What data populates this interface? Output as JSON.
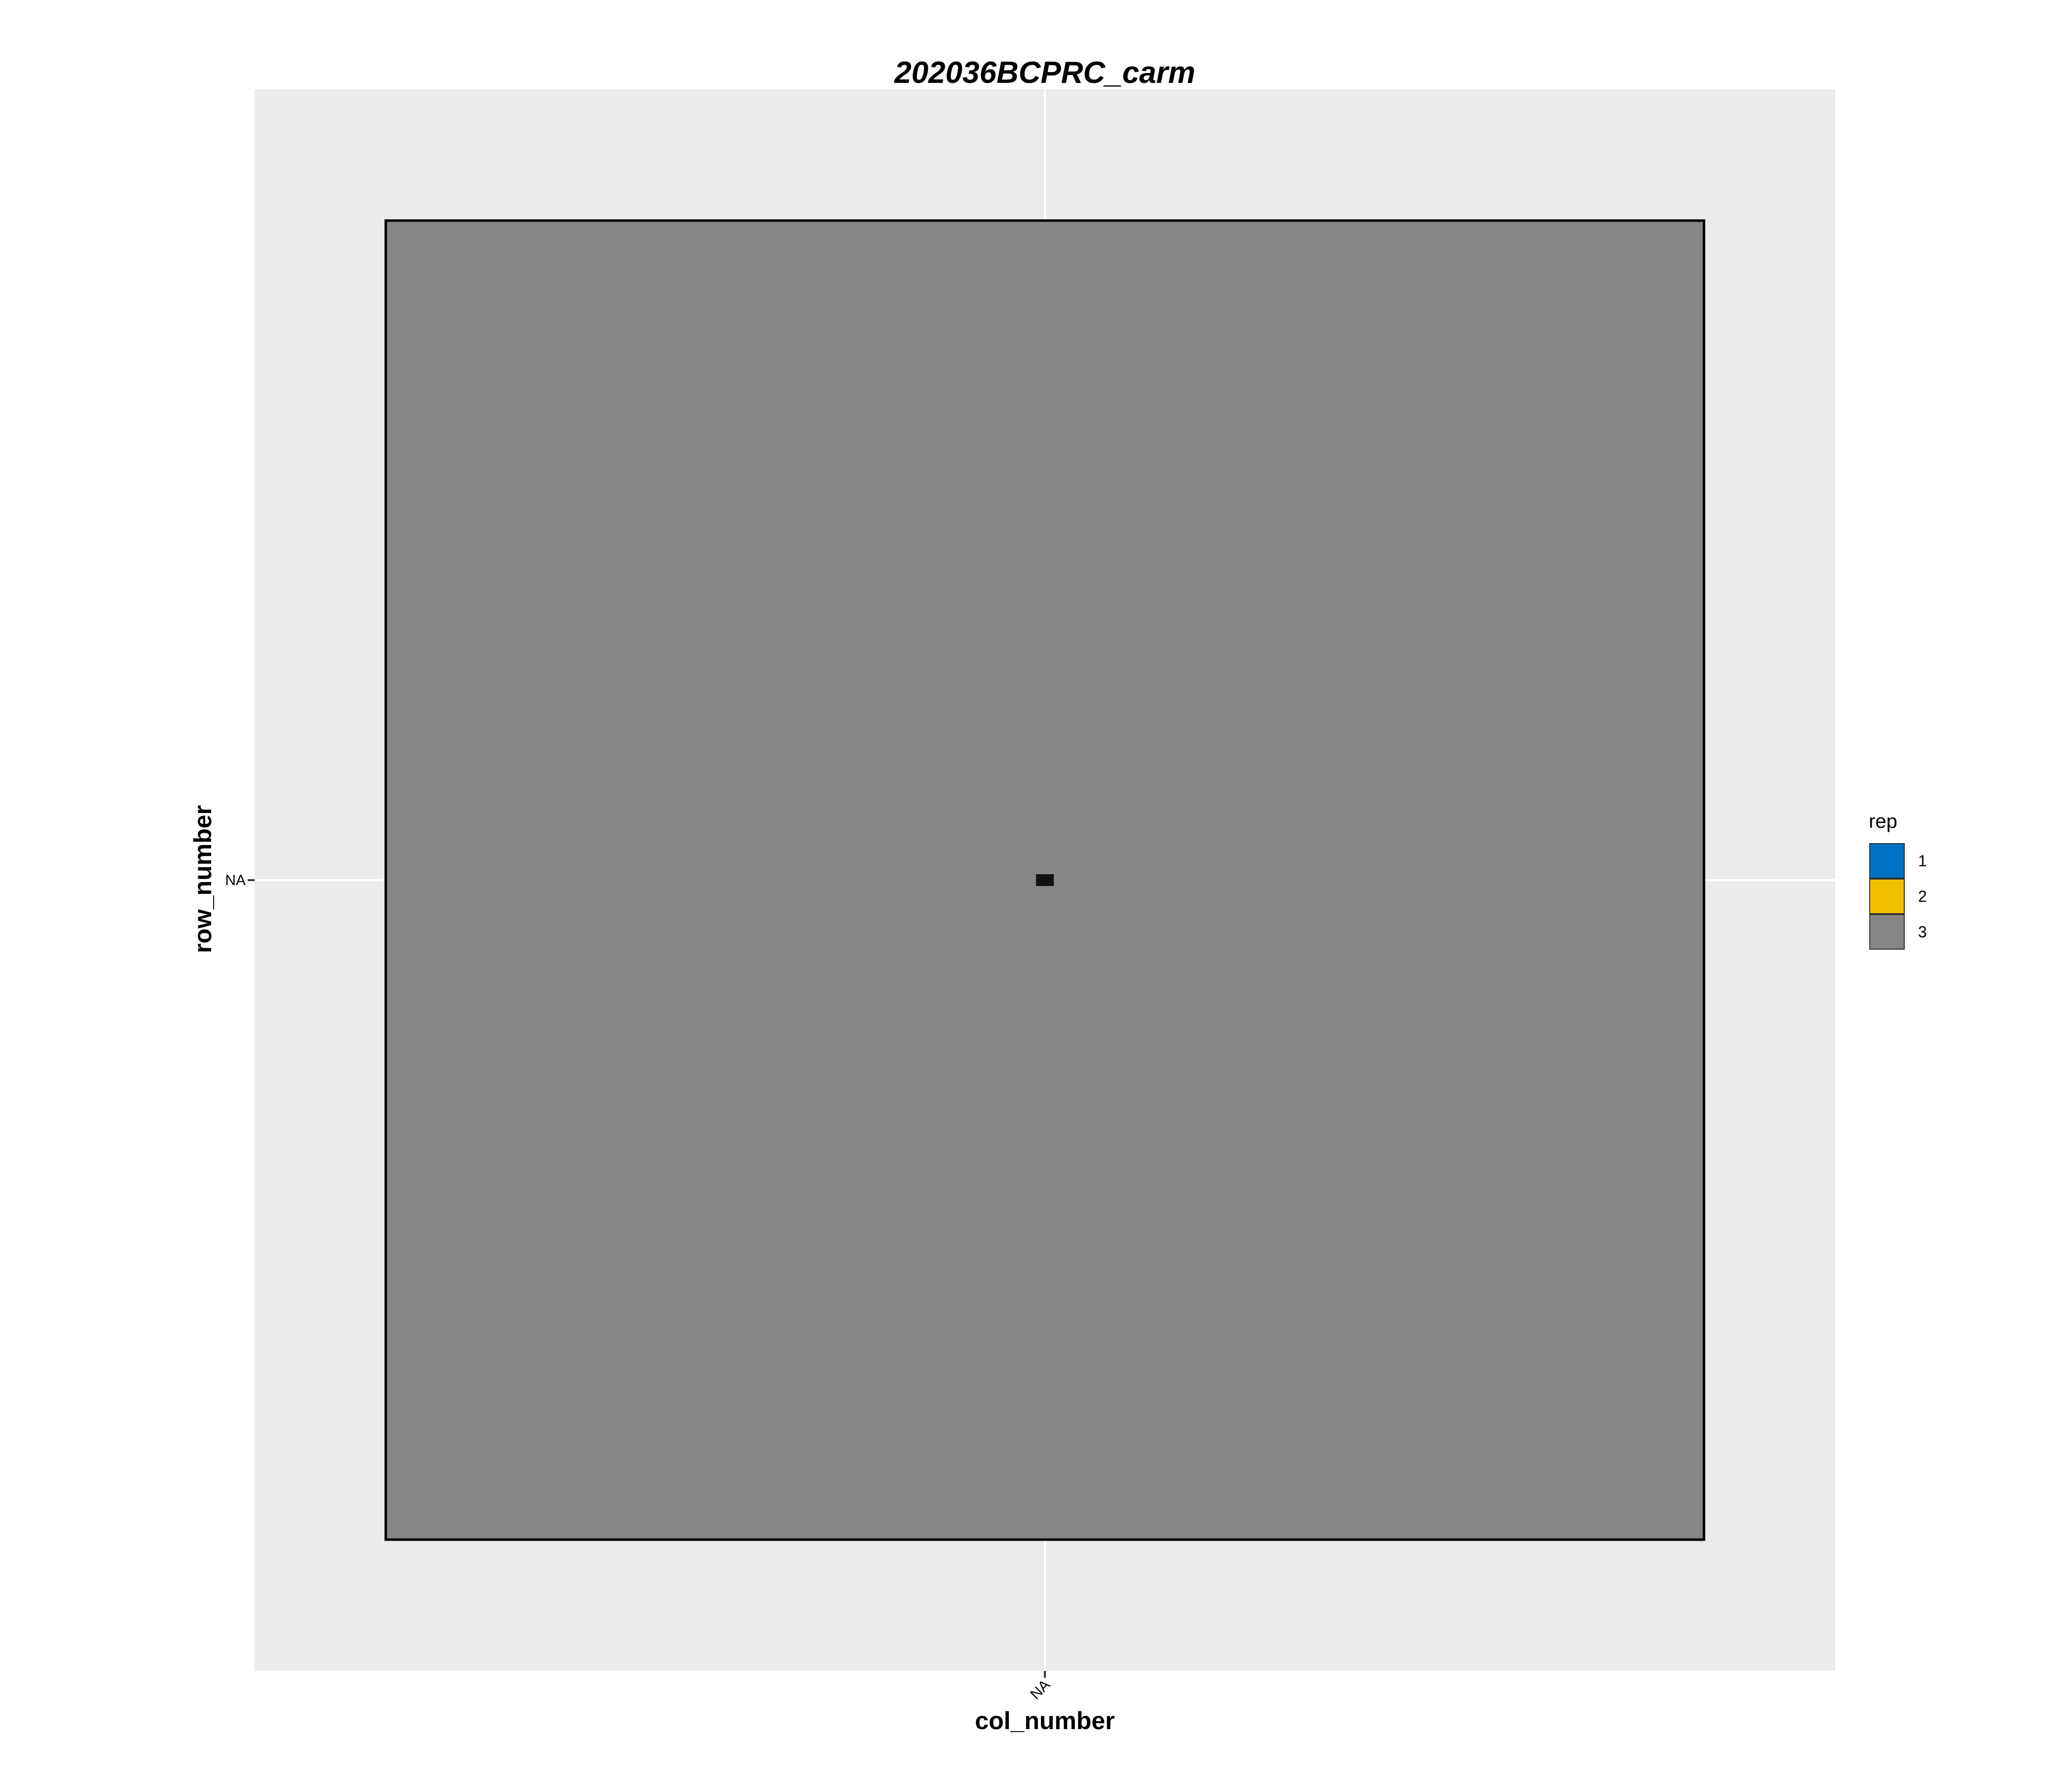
{
  "chart_data": {
    "type": "heatmap",
    "title": "202036BCPRC_carm",
    "xlabel": "col_number",
    "ylabel": "row_number",
    "x_ticks": [
      "NA"
    ],
    "y_ticks": [
      "NA"
    ],
    "cells": [
      {
        "col": "NA",
        "row": "NA",
        "rep": "3",
        "label": ""
      }
    ],
    "legend": {
      "title": "rep",
      "position": "right",
      "entries": [
        {
          "label": "1",
          "color": "#0072C6"
        },
        {
          "label": "2",
          "color": "#F1C100"
        },
        {
          "label": "3",
          "color": "#868686"
        }
      ]
    },
    "colors": {
      "panel_background": "#EBEBEB",
      "gridline": "#FFFFFF",
      "tile_border": "#000000"
    },
    "grid": true
  }
}
